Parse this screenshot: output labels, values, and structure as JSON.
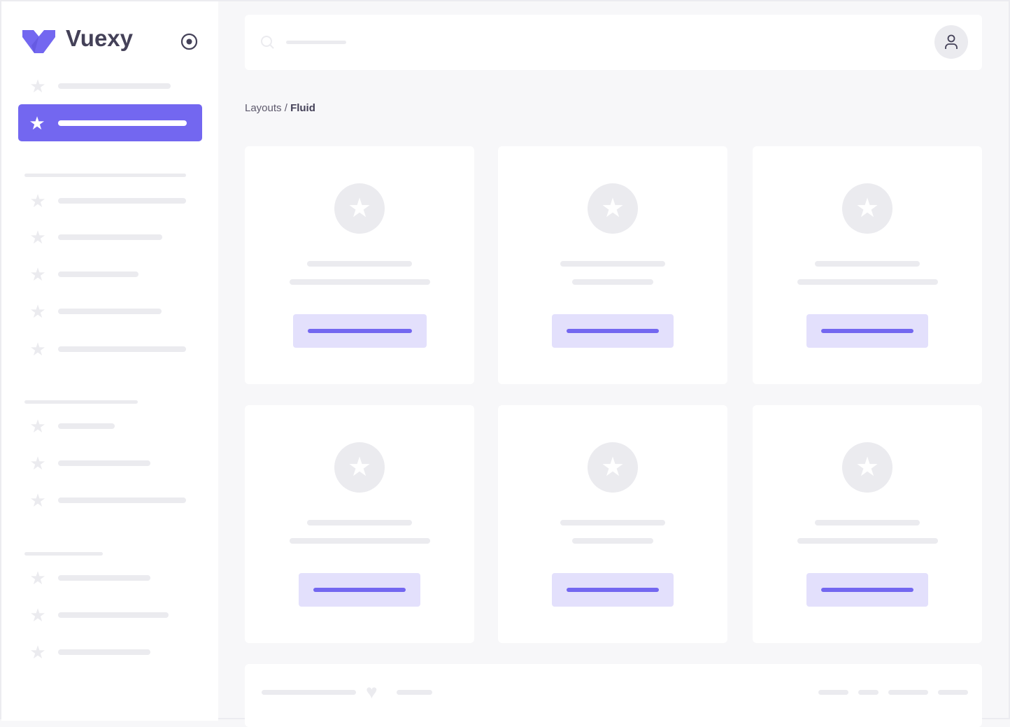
{
  "sidebar": {
    "brand": "Vuexy",
    "brand_color": "#7367f0",
    "toggle_icon": "radio-circle-icon",
    "item_icon": "star-icon"
  },
  "header": {
    "search_icon": "search-icon",
    "user_icon": "user-icon"
  },
  "breadcrumb": {
    "parent": "Layouts",
    "separator": " / ",
    "current": "Fluid"
  },
  "footer": {
    "icon": "heart-icon"
  }
}
